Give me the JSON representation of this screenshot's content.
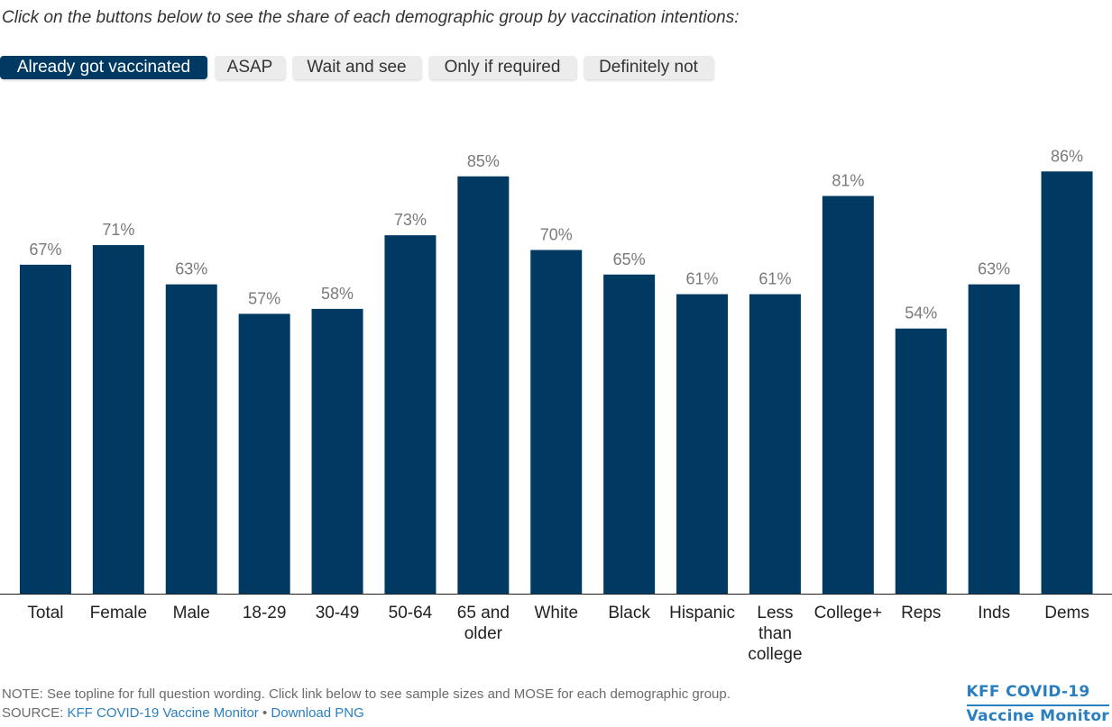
{
  "prompt": "Click on the buttons below to see the share of each demographic group by vaccination intentions:",
  "buttons": [
    {
      "label": "Already got vaccinated",
      "active": true
    },
    {
      "label": "ASAP",
      "active": false
    },
    {
      "label": "Wait and see",
      "active": false
    },
    {
      "label": "Only if required",
      "active": false
    },
    {
      "label": "Definitely not",
      "active": false
    }
  ],
  "colors": {
    "bar": "#003a63",
    "value_label": "#7a7a7a",
    "axis": "#222222",
    "link": "#2a7fc1"
  },
  "chart_data": {
    "type": "bar",
    "title": "",
    "xlabel": "",
    "ylabel": "",
    "ylim": [
      0,
      100
    ],
    "grid": false,
    "categories": [
      [
        "Total"
      ],
      [
        "Female"
      ],
      [
        "Male"
      ],
      [
        "18-29"
      ],
      [
        "30-49"
      ],
      [
        "50-64"
      ],
      [
        "65 and",
        "older"
      ],
      [
        "White"
      ],
      [
        "Black"
      ],
      [
        "Hispanic"
      ],
      [
        "Less",
        "than",
        "college"
      ],
      [
        "College+"
      ],
      [
        "Reps"
      ],
      [
        "Inds"
      ],
      [
        "Dems"
      ]
    ],
    "values": [
      67,
      71,
      63,
      57,
      58,
      73,
      85,
      70,
      65,
      61,
      61,
      81,
      54,
      63,
      86
    ],
    "value_labels": [
      "67%",
      "71%",
      "63%",
      "57%",
      "58%",
      "73%",
      "85%",
      "70%",
      "65%",
      "61%",
      "61%",
      "81%",
      "54%",
      "63%",
      "86%"
    ]
  },
  "footer": {
    "note": "NOTE: See topline for full question wording. Click link below to see sample sizes and MOSE for each demographic group.",
    "source_prefix": "SOURCE: ",
    "source_link": "KFF COVID-19 Vaccine Monitor",
    "separator": " • ",
    "download_link": "Download PNG"
  },
  "brand": {
    "line1": "KFF COVID-19",
    "line2": "Vaccine Monitor"
  }
}
